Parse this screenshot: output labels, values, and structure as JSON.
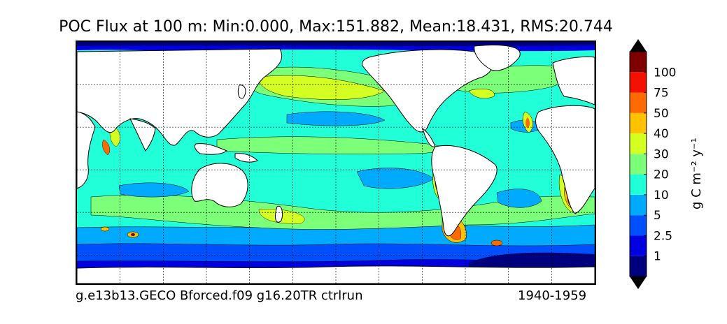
{
  "title": "POC Flux at 100 m: Min:0.000, Max:151.882, Mean:18.431, RMS:20.744",
  "footer": {
    "case_name": "g.e13b13.GECO Bforced.f09 g16.20TR ctrlrun",
    "years": "1940-1959"
  },
  "colorbar": {
    "units": "g C m⁻² y⁻¹",
    "tick_labels": [
      "1",
      "2.5",
      "5",
      "10",
      "20",
      "30",
      "40",
      "50",
      "75",
      "100"
    ],
    "colors": [
      "#00007f",
      "#0000e0",
      "#0050ff",
      "#00aaff",
      "#20ffd8",
      "#7cff79",
      "#d4ff22",
      "#ffc200",
      "#ff6a00",
      "#f41000",
      "#7f0000"
    ],
    "extend": "both"
  },
  "map": {
    "projection": "cylindrical",
    "longitude_range": [
      30,
      390
    ],
    "latitude_range": [
      -80,
      90
    ],
    "gridlines": "dashed",
    "land_color": "#ffffff",
    "ocean_base_level_color": "#20ffd8"
  }
}
